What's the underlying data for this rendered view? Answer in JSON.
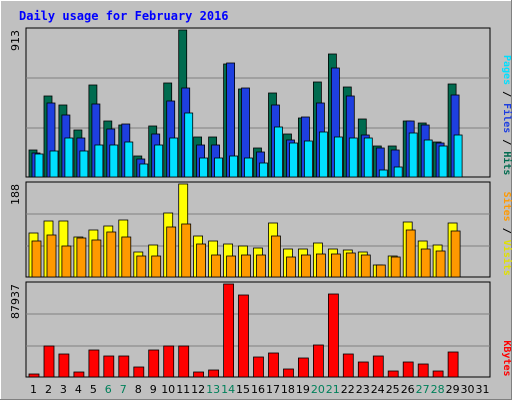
{
  "chart_data": {
    "type": "bar",
    "title": "Daily usage for February 2016",
    "days": [
      "1",
      "2",
      "3",
      "4",
      "5",
      "6",
      "7",
      "8",
      "9",
      "10",
      "11",
      "12",
      "13",
      "14",
      "15",
      "16",
      "17",
      "18",
      "19",
      "20",
      "21",
      "22",
      "23",
      "24",
      "25",
      "26",
      "27",
      "28",
      "29",
      "30",
      "31"
    ],
    "weekend_days": [
      "6",
      "7",
      "13",
      "14",
      "20",
      "21",
      "27",
      "28"
    ],
    "panels": [
      {
        "id": "hits-files-pages",
        "max_label": "913",
        "max": 913,
        "legend": [
          "Pages",
          "Files",
          "Hits"
        ],
        "series": [
          {
            "name": "Hits",
            "color": "#006b4f",
            "values": [
              170,
              500,
              450,
              290,
              570,
              350,
              320,
              130,
              315,
              585,
              913,
              250,
              250,
              700,
              545,
              180,
              520,
              270,
              365,
              590,
              765,
              560,
              360,
              190,
              190,
              345,
              335,
              220,
              575,
              0,
              0
            ]
          },
          {
            "name": "Files",
            "color": "#1e3fe0",
            "values": [
              150,
              460,
              385,
              240,
              455,
              300,
              330,
              110,
              270,
              470,
              550,
              200,
              200,
              710,
              550,
              155,
              450,
              230,
              370,
              460,
              680,
              500,
              260,
              180,
              170,
              345,
              320,
              210,
              510,
              0,
              0
            ]
          },
          {
            "name": "Pages",
            "color": "#00e0ff",
            "values": [
              140,
              160,
              240,
              160,
              200,
              200,
              220,
              80,
              200,
              240,
              400,
              120,
              120,
              130,
              120,
              90,
              310,
              210,
              225,
              280,
              250,
              245,
              240,
              45,
              60,
              275,
              230,
              190,
              260,
              0,
              0
            ]
          }
        ]
      },
      {
        "id": "visits-sites",
        "max_label": "188",
        "max": 188,
        "legend": [
          "Sites",
          "Visits"
        ],
        "series": [
          {
            "name": "Visits",
            "color": "#ffff00",
            "values": [
              89,
              113,
              113,
              80,
              96,
              104,
              115,
              50,
              64,
              129,
              188,
              82,
              72,
              67,
              62,
              58,
              110,
              57,
              56,
              68,
              56,
              55,
              51,
              24,
              42,
              112,
              72,
              64,
              109,
              0,
              0
            ]
          },
          {
            "name": "Sites",
            "color": "#ff9900",
            "values": [
              72,
              84,
              63,
              78,
              74,
              90,
              81,
              43,
              43,
              101,
              108,
              67,
              45,
              43,
              45,
              45,
              83,
              40,
              44,
              46,
              47,
              48,
              44,
              24,
              40,
              96,
              56,
              52,
              93,
              0,
              0
            ]
          }
        ]
      },
      {
        "id": "kbytes",
        "max_label": "87937",
        "max": 87937,
        "legend": [
          "KBytes"
        ],
        "series": [
          {
            "name": "KBytes",
            "color": "#ff0000",
            "values": [
              3200,
              29000,
              21400,
              5000,
              26000,
              19600,
              19600,
              9800,
              25500,
              29400,
              29000,
              4500,
              7000,
              87937,
              77800,
              18700,
              22500,
              7500,
              18100,
              29900,
              78400,
              21800,
              13800,
              19900,
              6000,
              13800,
              12000,
              5500,
              24100,
              0,
              0
            ]
          }
        ]
      }
    ]
  }
}
